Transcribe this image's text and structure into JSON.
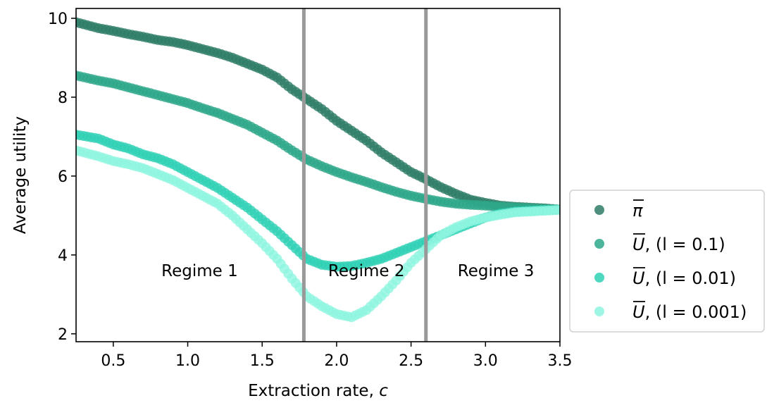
{
  "chart_data": {
    "type": "scatter",
    "xlabel": "Extraction rate, c",
    "ylabel": "Average utility",
    "xlim": [
      0.25,
      3.5
    ],
    "ylim": [
      1.8,
      10.25
    ],
    "xticks": [
      "0.5",
      "1.0",
      "1.5",
      "2.0",
      "2.5",
      "3.0",
      "3.5"
    ],
    "yticks": [
      "2",
      "4",
      "6",
      "8",
      "10"
    ],
    "grid": false,
    "legend_position": "outside-right",
    "vlines": [
      1.78,
      2.6
    ],
    "annotations": [
      {
        "text": "Regime 1",
        "x": 1.08,
        "y": 3.6
      },
      {
        "text": "Regime 2",
        "x": 2.2,
        "y": 3.6
      },
      {
        "text": "Regime 3",
        "x": 3.07,
        "y": 3.6
      }
    ],
    "series": [
      {
        "name": "π̄",
        "color": "#2e7d66",
        "points": [
          [
            0.25,
            9.9
          ],
          [
            0.4,
            9.75
          ],
          [
            0.5,
            9.68
          ],
          [
            0.6,
            9.6
          ],
          [
            0.7,
            9.53
          ],
          [
            0.8,
            9.45
          ],
          [
            0.9,
            9.4
          ],
          [
            1.0,
            9.32
          ],
          [
            1.1,
            9.22
          ],
          [
            1.2,
            9.12
          ],
          [
            1.3,
            9.0
          ],
          [
            1.4,
            8.85
          ],
          [
            1.5,
            8.7
          ],
          [
            1.6,
            8.5
          ],
          [
            1.7,
            8.2
          ],
          [
            1.8,
            7.95
          ],
          [
            1.9,
            7.7
          ],
          [
            2.0,
            7.4
          ],
          [
            2.1,
            7.15
          ],
          [
            2.2,
            6.9
          ],
          [
            2.3,
            6.6
          ],
          [
            2.4,
            6.35
          ],
          [
            2.5,
            6.1
          ],
          [
            2.6,
            5.92
          ],
          [
            2.7,
            5.72
          ],
          [
            2.8,
            5.55
          ],
          [
            2.9,
            5.4
          ],
          [
            3.0,
            5.32
          ],
          [
            3.1,
            5.25
          ],
          [
            3.2,
            5.22
          ],
          [
            3.3,
            5.2
          ],
          [
            3.4,
            5.18
          ],
          [
            3.5,
            5.15
          ]
        ]
      },
      {
        "name": "U̅, (l = 0.1)",
        "color": "#2ea88a",
        "points": [
          [
            0.25,
            8.55
          ],
          [
            0.4,
            8.42
          ],
          [
            0.5,
            8.35
          ],
          [
            0.6,
            8.25
          ],
          [
            0.7,
            8.15
          ],
          [
            0.8,
            8.05
          ],
          [
            0.9,
            7.95
          ],
          [
            1.0,
            7.85
          ],
          [
            1.1,
            7.72
          ],
          [
            1.2,
            7.6
          ],
          [
            1.3,
            7.45
          ],
          [
            1.4,
            7.3
          ],
          [
            1.5,
            7.1
          ],
          [
            1.6,
            6.9
          ],
          [
            1.7,
            6.65
          ],
          [
            1.8,
            6.42
          ],
          [
            1.9,
            6.25
          ],
          [
            2.0,
            6.1
          ],
          [
            2.1,
            5.97
          ],
          [
            2.2,
            5.85
          ],
          [
            2.3,
            5.72
          ],
          [
            2.4,
            5.6
          ],
          [
            2.5,
            5.5
          ],
          [
            2.6,
            5.42
          ],
          [
            2.7,
            5.35
          ],
          [
            2.8,
            5.3
          ],
          [
            2.9,
            5.27
          ],
          [
            3.0,
            5.25
          ],
          [
            3.1,
            5.22
          ],
          [
            3.2,
            5.2
          ],
          [
            3.3,
            5.18
          ],
          [
            3.4,
            5.16
          ],
          [
            3.5,
            5.15
          ]
        ]
      },
      {
        "name": "U̅, (l = 0.01)",
        "color": "#2fd1b5",
        "points": [
          [
            0.25,
            7.05
          ],
          [
            0.4,
            6.95
          ],
          [
            0.5,
            6.8
          ],
          [
            0.6,
            6.7
          ],
          [
            0.7,
            6.55
          ],
          [
            0.8,
            6.45
          ],
          [
            0.9,
            6.3
          ],
          [
            1.0,
            6.1
          ],
          [
            1.1,
            5.9
          ],
          [
            1.2,
            5.7
          ],
          [
            1.3,
            5.45
          ],
          [
            1.4,
            5.2
          ],
          [
            1.5,
            4.9
          ],
          [
            1.6,
            4.6
          ],
          [
            1.7,
            4.25
          ],
          [
            1.8,
            3.9
          ],
          [
            1.9,
            3.75
          ],
          [
            2.0,
            3.7
          ],
          [
            2.1,
            3.72
          ],
          [
            2.2,
            3.8
          ],
          [
            2.3,
            3.9
          ],
          [
            2.4,
            4.05
          ],
          [
            2.5,
            4.2
          ],
          [
            2.6,
            4.35
          ],
          [
            2.7,
            4.5
          ],
          [
            2.8,
            4.65
          ],
          [
            2.9,
            4.8
          ],
          [
            3.0,
            4.95
          ],
          [
            3.1,
            5.05
          ],
          [
            3.2,
            5.1
          ],
          [
            3.3,
            5.12
          ],
          [
            3.4,
            5.14
          ],
          [
            3.5,
            5.15
          ]
        ]
      },
      {
        "name": "U̅, (l = 0.001)",
        "color": "#8ff5e0",
        "points": [
          [
            0.25,
            6.65
          ],
          [
            0.4,
            6.5
          ],
          [
            0.5,
            6.38
          ],
          [
            0.6,
            6.3
          ],
          [
            0.7,
            6.2
          ],
          [
            0.8,
            6.05
          ],
          [
            0.9,
            5.9
          ],
          [
            1.0,
            5.7
          ],
          [
            1.1,
            5.5
          ],
          [
            1.2,
            5.3
          ],
          [
            1.3,
            5.0
          ],
          [
            1.4,
            4.65
          ],
          [
            1.5,
            4.3
          ],
          [
            1.6,
            3.9
          ],
          [
            1.7,
            3.4
          ],
          [
            1.8,
            2.95
          ],
          [
            1.9,
            2.7
          ],
          [
            2.0,
            2.5
          ],
          [
            2.1,
            2.42
          ],
          [
            2.2,
            2.6
          ],
          [
            2.3,
            2.95
          ],
          [
            2.4,
            3.35
          ],
          [
            2.5,
            3.8
          ],
          [
            2.6,
            4.15
          ],
          [
            2.7,
            4.5
          ],
          [
            2.8,
            4.7
          ],
          [
            2.9,
            4.85
          ],
          [
            3.0,
            4.95
          ],
          [
            3.1,
            5.02
          ],
          [
            3.2,
            5.08
          ],
          [
            3.3,
            5.1
          ],
          [
            3.4,
            5.12
          ],
          [
            3.5,
            5.14
          ]
        ]
      }
    ],
    "legend_labels": [
      {
        "symbol": "π",
        "rest": ""
      },
      {
        "symbol": "U",
        "rest": ", (l = 0.1)"
      },
      {
        "symbol": "U",
        "rest": ", (l = 0.01)"
      },
      {
        "symbol": "U",
        "rest": ", (l = 0.001)"
      }
    ]
  }
}
